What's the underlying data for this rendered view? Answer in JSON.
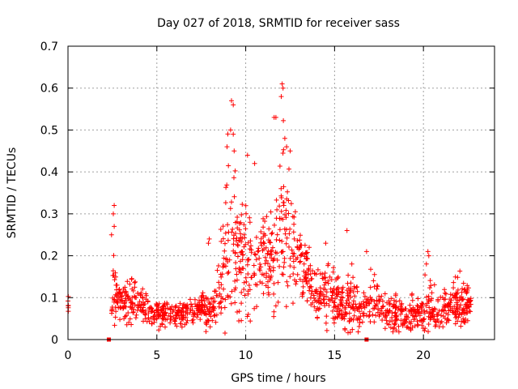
{
  "chart_data": {
    "type": "scatter",
    "title": "Day 027 of 2018, SRMTID for receiver sass",
    "xlabel": "GPS time / hours",
    "ylabel": "SRMTID / TECUs",
    "xlim": [
      0,
      24
    ],
    "ylim": [
      0,
      0.7
    ],
    "grid": true,
    "x_ticks": [
      0,
      5,
      10,
      15,
      20
    ],
    "y_ticks": [
      0,
      0.1,
      0.2,
      0.3,
      0.4,
      0.5,
      0.6,
      0.7
    ],
    "x_tick_labels": [
      "0",
      "5",
      "10",
      "15",
      "20"
    ],
    "y_tick_labels": [
      "0",
      "0.1",
      "0.2",
      "0.3",
      "0.4",
      "0.5",
      "0.6",
      "0.7"
    ],
    "marker": "+",
    "color": "#ff0000",
    "series": [
      {
        "name": "SRMTID",
        "envelope_x": [
          0.0,
          0.05,
          2.5,
          2.55,
          2.6,
          2.7,
          3.0,
          3.5,
          4.0,
          4.5,
          5.0,
          6.0,
          7.0,
          7.5,
          8.0,
          8.5,
          8.8,
          9.0,
          9.2,
          9.4,
          9.8,
          10.2,
          10.6,
          11.0,
          11.5,
          11.8,
          12.0,
          12.2,
          12.5,
          13.0,
          13.5,
          14.0,
          14.5,
          15.0,
          15.5,
          16.0,
          16.5,
          17.0,
          17.5,
          18.0,
          18.5,
          19.0,
          19.5,
          20.0,
          20.2,
          20.5,
          21.0,
          21.5,
          22.0,
          22.5,
          22.7
        ],
        "envelope_mean": [
          0.09,
          0.08,
          0.07,
          0.2,
          0.12,
          0.1,
          0.08,
          0.1,
          0.09,
          0.07,
          0.06,
          0.06,
          0.06,
          0.08,
          0.07,
          0.12,
          0.2,
          0.25,
          0.3,
          0.22,
          0.2,
          0.2,
          0.18,
          0.2,
          0.18,
          0.22,
          0.28,
          0.26,
          0.22,
          0.2,
          0.15,
          0.1,
          0.12,
          0.1,
          0.08,
          0.09,
          0.06,
          0.1,
          0.08,
          0.06,
          0.06,
          0.06,
          0.06,
          0.07,
          0.1,
          0.07,
          0.07,
          0.08,
          0.09,
          0.08,
          0.07
        ],
        "envelope_spread": [
          0.02,
          0.02,
          0.02,
          0.08,
          0.05,
          0.04,
          0.03,
          0.04,
          0.03,
          0.02,
          0.02,
          0.02,
          0.02,
          0.03,
          0.03,
          0.05,
          0.12,
          0.15,
          0.18,
          0.1,
          0.1,
          0.1,
          0.09,
          0.09,
          0.09,
          0.12,
          0.18,
          0.14,
          0.1,
          0.06,
          0.05,
          0.04,
          0.06,
          0.04,
          0.03,
          0.07,
          0.03,
          0.05,
          0.04,
          0.03,
          0.03,
          0.03,
          0.03,
          0.03,
          0.06,
          0.03,
          0.03,
          0.03,
          0.04,
          0.03,
          0.03
        ],
        "peaks": [
          {
            "x": 9.2,
            "y": 0.57
          },
          {
            "x": 9.3,
            "y": 0.56
          },
          {
            "x": 9.15,
            "y": 0.5
          },
          {
            "x": 9.3,
            "y": 0.49
          },
          {
            "x": 8.95,
            "y": 0.46
          },
          {
            "x": 9.35,
            "y": 0.45
          },
          {
            "x": 11.6,
            "y": 0.53
          },
          {
            "x": 11.7,
            "y": 0.53
          },
          {
            "x": 12.05,
            "y": 0.61
          },
          {
            "x": 12.1,
            "y": 0.6
          },
          {
            "x": 12.0,
            "y": 0.58
          },
          {
            "x": 12.2,
            "y": 0.48
          },
          {
            "x": 12.3,
            "y": 0.46
          },
          {
            "x": 12.5,
            "y": 0.45
          },
          {
            "x": 10.5,
            "y": 0.42
          },
          {
            "x": 10.1,
            "y": 0.44
          },
          {
            "x": 2.6,
            "y": 0.32
          },
          {
            "x": 2.55,
            "y": 0.3
          },
          {
            "x": 2.45,
            "y": 0.25
          },
          {
            "x": 2.6,
            "y": 0.27
          },
          {
            "x": 15.7,
            "y": 0.26
          },
          {
            "x": 16.8,
            "y": 0.21
          },
          {
            "x": 20.3,
            "y": 0.2
          },
          {
            "x": 20.25,
            "y": 0.21
          },
          {
            "x": 7.9,
            "y": 0.23
          },
          {
            "x": 7.95,
            "y": 0.24
          },
          {
            "x": 14.5,
            "y": 0.23
          }
        ],
        "zero_markers_x": [
          2.3,
          16.8
        ]
      }
    ]
  }
}
